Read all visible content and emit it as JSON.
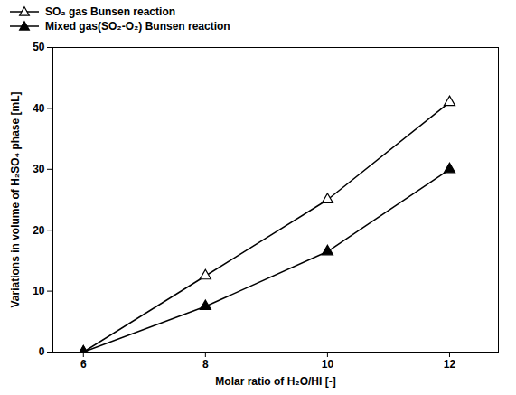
{
  "chart_data": {
    "type": "line",
    "x": [
      6,
      8,
      10,
      12
    ],
    "series": [
      {
        "name": "SO₂ gas Bunsen reaction",
        "color": "black",
        "marker": "triangle-open",
        "values": [
          0,
          12.5,
          25,
          41
        ]
      },
      {
        "name": "Mixed gas(SO₂-O₂) Bunsen reaction",
        "color": "black",
        "marker": "triangle",
        "values": [
          0,
          7.5,
          16.5,
          30
        ]
      }
    ],
    "xlabel": "Molar ratio of H₂O/HI [-]",
    "ylabel": "Variations in volume of H₂SO₄ phase [mL]",
    "xlim": [
      5.5,
      12.8
    ],
    "xticks": [
      6,
      8,
      10,
      12
    ],
    "ylim": [
      0,
      50
    ],
    "yticks": [
      0,
      10,
      20,
      30,
      40,
      50
    ],
    "legend": "upper left",
    "grid": false
  }
}
